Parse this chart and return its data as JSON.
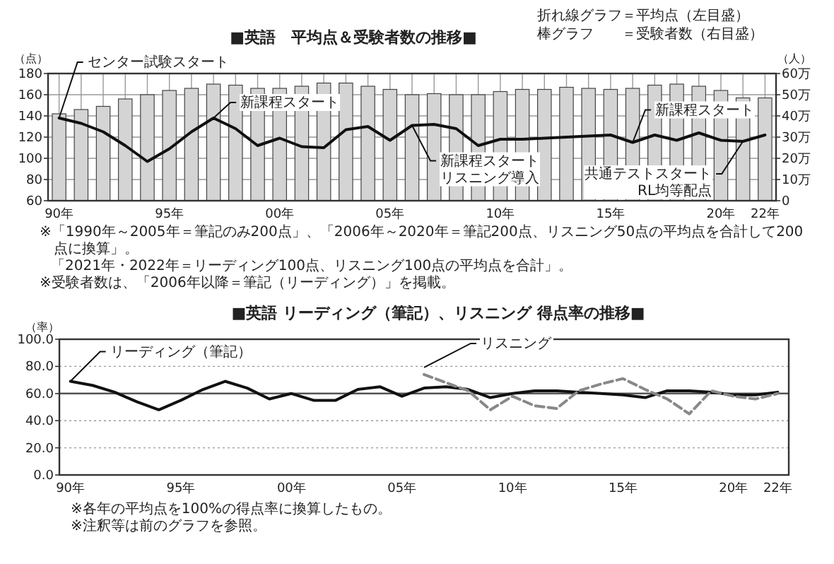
{
  "chart_data": [
    {
      "type": "bar",
      "title": "■英語　平均点＆受験者数の推移■",
      "ylabel": "（点）",
      "y2label": "（人）",
      "categories": [
        "90年",
        null,
        null,
        null,
        null,
        "95年",
        null,
        null,
        null,
        null,
        "00年",
        null,
        null,
        null,
        null,
        "05年",
        null,
        null,
        null,
        null,
        "10年",
        null,
        null,
        null,
        null,
        "15年",
        null,
        null,
        null,
        null,
        "20年",
        null,
        "22年"
      ],
      "ylim": [
        60,
        180
      ],
      "yticks": [
        60,
        80,
        100,
        120,
        140,
        160,
        180
      ],
      "y2lim": [
        0,
        60
      ],
      "y2ticks": [
        0,
        {
          "value": 10,
          "label": "10万"
        },
        {
          "value": 20,
          "label": "20万"
        },
        {
          "value": 30,
          "label": "30万"
        },
        {
          "value": 40,
          "label": "40万"
        },
        {
          "value": 50,
          "label": "50万"
        },
        {
          "value": 60,
          "label": "60万"
        }
      ],
      "grid": true,
      "series": [
        {
          "axis": "y2",
          "color": "#d4d4d4",
          "values": [
            41,
            43,
            44.5,
            48,
            50,
            52,
            53,
            55,
            54.5,
            53,
            53,
            54,
            55.5,
            55.5,
            54,
            52.5,
            50,
            50.5,
            50,
            50,
            51.5,
            52.5,
            52.5,
            53.5,
            53,
            52.5,
            53,
            54.5,
            55,
            54,
            52,
            48.5,
            48.5
          ]
        },
        {
          "type": "line",
          "axis": "y",
          "color": "#111111",
          "line_style": "solid",
          "values": [
            138,
            133,
            125,
            112,
            97,
            109,
            125,
            138,
            128,
            112,
            119,
            111,
            110,
            127,
            130,
            117,
            131,
            132,
            128,
            112,
            118,
            118,
            119,
            120,
            121,
            122,
            115,
            122,
            117,
            124,
            117,
            116,
            122
          ]
        }
      ],
      "annotations": [
        {
          "text": "センター試験スタート",
          "x": "90年",
          "y": 138
        },
        {
          "text": "新課程スタート",
          "y": 138
        },
        {
          "text": "新課程スタートリスニング導入",
          "y": 131
        },
        {
          "text": "新課程スタート",
          "y": 115
        },
        {
          "text": "共通テストスタートRL均等配点",
          "y": 116
        },
        "折れ線グラフ＝平均点（左目盛）",
        "棒グラフ　　＝受験者数（右目盛）",
        "※「1990年～2005年＝筆記のみ200点」、「2006年～2020年＝筆記200点、リスニング50点の平均点を合計して200点に換算」。",
        "「2021年・2022年＝リーディング100点、リスニング100点の平均点を合計」。",
        "※受験者数は、「2006年以降＝筆記（リーディング）」を掲載。"
      ]
    },
    {
      "type": "line",
      "title": "■英語 リーディング（筆記）、リスニング 得点率の推移■",
      "ylabel": "（率）",
      "categories": [
        "90年",
        null,
        null,
        null,
        null,
        "95年",
        null,
        null,
        null,
        null,
        "00年",
        null,
        null,
        null,
        null,
        "05年",
        null,
        null,
        null,
        null,
        "10年",
        null,
        null,
        null,
        null,
        "15年",
        null,
        null,
        null,
        null,
        "20年",
        null,
        "22年"
      ],
      "ylim": [
        0,
        100
      ],
      "yticks": [
        {
          "value": 0,
          "label": "0.0"
        },
        {
          "value": 20,
          "label": "20.0"
        },
        {
          "value": 40,
          "label": "40.0"
        },
        {
          "value": 60,
          "label": "60.0"
        },
        {
          "value": 80,
          "label": "80.0"
        },
        {
          "value": 100,
          "label": "100.0"
        }
      ],
      "grid": "y",
      "ref_lines": [
        {
          "axis": "y",
          "value": 60,
          "color": "#555555"
        }
      ],
      "series": [
        {
          "color": "#111111",
          "line_style": "solid",
          "values": [
            69,
            66,
            61,
            54,
            48,
            55,
            63,
            69,
            64,
            56,
            60,
            55,
            55,
            63,
            65,
            58,
            64,
            65,
            63,
            57,
            60,
            62,
            62,
            61,
            60,
            59,
            57,
            62,
            62,
            61,
            59,
            59,
            61
          ]
        },
        {
          "color": "#888888",
          "line_style": "dashed",
          "values": [
            null,
            null,
            null,
            null,
            null,
            null,
            null,
            null,
            null,
            null,
            null,
            null,
            null,
            null,
            null,
            null,
            74,
            68,
            62,
            48,
            58,
            51,
            49,
            62,
            67,
            71,
            63,
            56,
            45,
            62,
            58,
            56,
            60
          ]
        }
      ],
      "annotations": [
        {
          "text": "リーディング（筆記）",
          "x": "90年",
          "y": 69
        },
        "リスニング",
        "※各年の平均点を100%の得点率に換算したもの。",
        "※注釈等は前のグラフを参照。"
      ]
    }
  ]
}
